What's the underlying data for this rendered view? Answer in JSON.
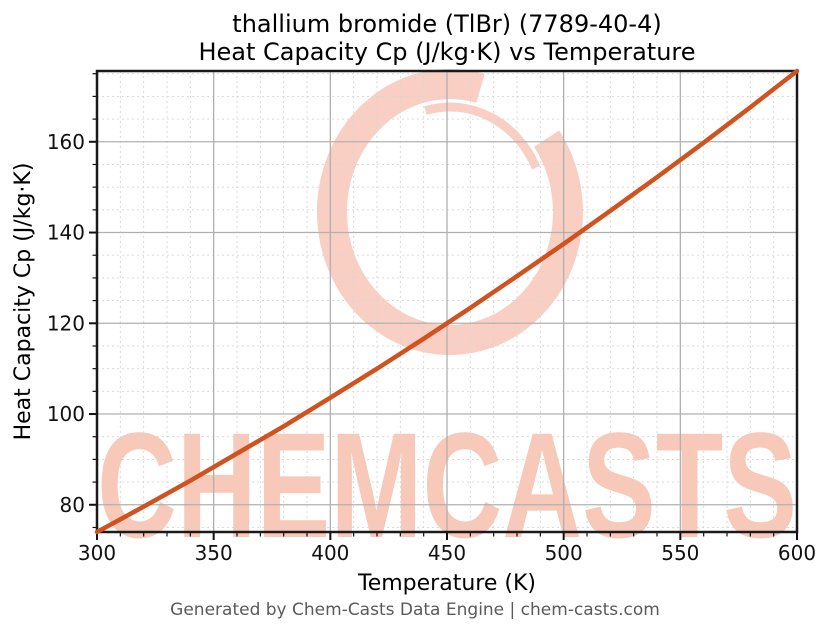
{
  "figure": {
    "title_line1": "thallium bromide (TlBr) (7789-40-4)",
    "title_line2": "Heat Capacity Cp (J/kg·K) vs Temperature",
    "footer_text": "Generated by Chem-Casts Data Engine | chem-casts.com"
  },
  "watermark": {
    "text": "CHEMCASTS",
    "logo_icon": "brush-ring-c-logo",
    "text_color": "#f8c8b8",
    "logo_color": "#f9cfc3"
  },
  "chart_data": {
    "type": "line",
    "title": "thallium bromide (TlBr) (7789-40-4) Heat Capacity Cp (J/kg·K) vs Temperature",
    "xlabel": "Temperature (K)",
    "ylabel": "Heat Capacity Cp (J/kg·K)",
    "xlim": [
      300,
      600
    ],
    "ylim": [
      74.0,
      175.6
    ],
    "x_ticks": [
      300,
      350,
      400,
      450,
      500,
      550,
      600
    ],
    "y_ticks": [
      80,
      100,
      120,
      140,
      160
    ],
    "x_minor_step": 10,
    "y_minor_step": 5,
    "grid": {
      "major_style": "solid",
      "major_color": "#b0b0b0",
      "minor_style": "dashed",
      "minor_color": "#d6d6d6"
    },
    "legend": "none",
    "series": [
      {
        "name": "Heat Capacity Cp (J/kg·K)",
        "color": "#d0521e",
        "x": [
          300,
          320,
          340,
          360,
          380,
          400,
          420,
          440,
          460,
          480,
          500,
          520,
          540,
          560,
          580,
          600
        ],
        "y": [
          74.0,
          79.6,
          85.3,
          91.3,
          97.3,
          103.6,
          110.0,
          116.6,
          123.4,
          130.4,
          137.5,
          144.8,
          152.2,
          159.8,
          167.6,
          175.6
        ]
      }
    ]
  }
}
